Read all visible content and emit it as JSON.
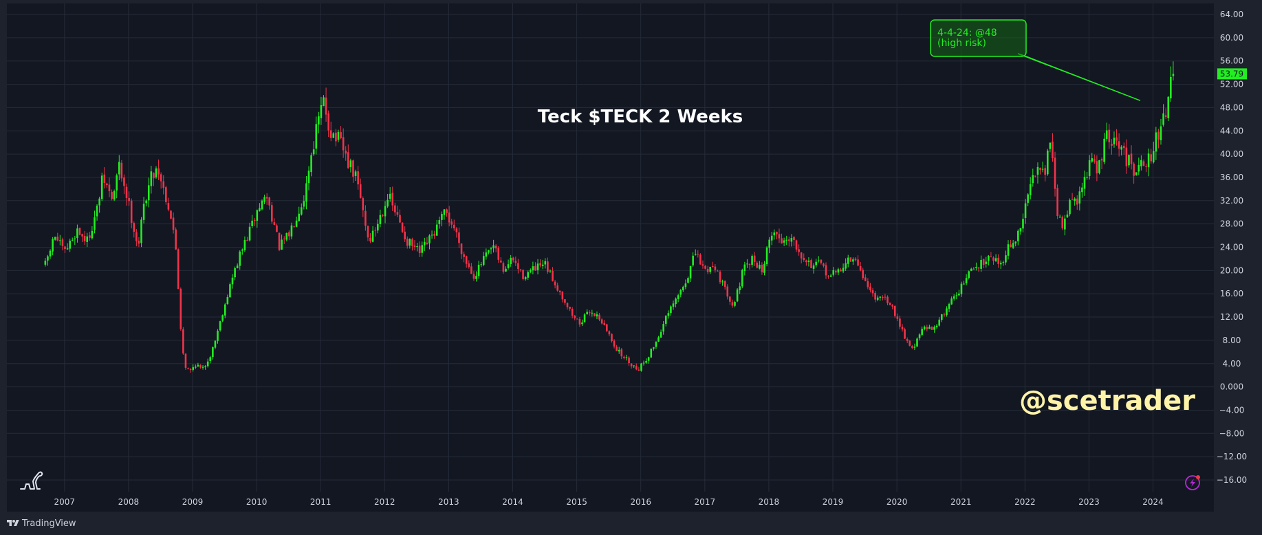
{
  "colors": {
    "background": "#131722",
    "frame": "#1e222d",
    "grid": "#252b38",
    "up": "#22ee22",
    "down": "#f2334a",
    "annotation": "#22ee22",
    "watermark": "#fff3a8",
    "price_badge": "#22ee22"
  },
  "footer": {
    "brand": "TradingView"
  },
  "icons": {
    "bottom_left": "dinosaur-icon",
    "bottom_right": "lightning-icon",
    "footer": "tradingview-logo-icon"
  },
  "chart_data": {
    "type": "candlestick",
    "title": "Teck $TECK 2 Weeks",
    "watermark": "@scetrader",
    "ylim": [
      -18,
      66
    ],
    "y_ticks": [
      64,
      60,
      56,
      52,
      48,
      44,
      40,
      36,
      32,
      28,
      24,
      20,
      16,
      12,
      8,
      4,
      0,
      -4,
      -8,
      -12,
      -16
    ],
    "y_tick_labels": [
      "64.00",
      "60.00",
      "56.00",
      "52.00",
      "48.00",
      "44.00",
      "40.00",
      "36.00",
      "32.00",
      "28.00",
      "24.00",
      "20.00",
      "16.00",
      "12.00",
      "8.00",
      "4.00",
      "0.000",
      "−4.00",
      "−8.00",
      "−12.00",
      "−16.00"
    ],
    "x_range": [
      2006.1,
      2024.95
    ],
    "x_ticks": [
      "2007",
      "2008",
      "2009",
      "2010",
      "2011",
      "2012",
      "2013",
      "2014",
      "2015",
      "2016",
      "2017",
      "2018",
      "2019",
      "2020",
      "2021",
      "2022",
      "2023",
      "2024"
    ],
    "last_price": "53.79",
    "annotation": {
      "line1": "4-4-24: @48",
      "line2": "(high risk)",
      "target_date": 2023.8,
      "target_price": 49.2
    },
    "price_path": [
      [
        2006.7,
        21
      ],
      [
        2006.85,
        26
      ],
      [
        2007.0,
        23
      ],
      [
        2007.2,
        27
      ],
      [
        2007.35,
        25
      ],
      [
        2007.5,
        30
      ],
      [
        2007.6,
        36
      ],
      [
        2007.75,
        32
      ],
      [
        2007.85,
        38
      ],
      [
        2007.95,
        34
      ],
      [
        2008.05,
        29
      ],
      [
        2008.15,
        24
      ],
      [
        2008.25,
        32
      ],
      [
        2008.35,
        36
      ],
      [
        2008.45,
        38
      ],
      [
        2008.55,
        34
      ],
      [
        2008.65,
        30
      ],
      [
        2008.75,
        23
      ],
      [
        2008.8,
        12
      ],
      [
        2008.87,
        4
      ],
      [
        2008.95,
        2.5
      ],
      [
        2009.05,
        4
      ],
      [
        2009.15,
        2.8
      ],
      [
        2009.3,
        6
      ],
      [
        2009.45,
        12
      ],
      [
        2009.6,
        18
      ],
      [
        2009.75,
        23
      ],
      [
        2009.9,
        27
      ],
      [
        2010.0,
        30
      ],
      [
        2010.15,
        33
      ],
      [
        2010.25,
        29
      ],
      [
        2010.35,
        24
      ],
      [
        2010.5,
        26
      ],
      [
        2010.6,
        29
      ],
      [
        2010.75,
        33
      ],
      [
        2010.85,
        40
      ],
      [
        2010.95,
        45
      ],
      [
        2011.05,
        49
      ],
      [
        2011.15,
        44
      ],
      [
        2011.3,
        42
      ],
      [
        2011.45,
        38
      ],
      [
        2011.55,
        36
      ],
      [
        2011.65,
        31
      ],
      [
        2011.75,
        25
      ],
      [
        2011.85,
        27
      ],
      [
        2012.05,
        33
      ],
      [
        2012.2,
        29
      ],
      [
        2012.35,
        25
      ],
      [
        2012.55,
        23
      ],
      [
        2012.75,
        26
      ],
      [
        2012.95,
        30
      ],
      [
        2013.1,
        27
      ],
      [
        2013.25,
        22
      ],
      [
        2013.4,
        19
      ],
      [
        2013.55,
        22
      ],
      [
        2013.7,
        24
      ],
      [
        2013.85,
        20
      ],
      [
        2014.0,
        22
      ],
      [
        2014.15,
        19
      ],
      [
        2014.3,
        20
      ],
      [
        2014.5,
        21
      ],
      [
        2014.65,
        18
      ],
      [
        2014.8,
        15
      ],
      [
        2014.95,
        12
      ],
      [
        2015.05,
        11
      ],
      [
        2015.2,
        13
      ],
      [
        2015.35,
        12
      ],
      [
        2015.5,
        9
      ],
      [
        2015.65,
        6
      ],
      [
        2015.8,
        4.5
      ],
      [
        2015.95,
        3
      ],
      [
        2016.1,
        5
      ],
      [
        2016.25,
        8
      ],
      [
        2016.4,
        12
      ],
      [
        2016.55,
        15
      ],
      [
        2016.7,
        18
      ],
      [
        2016.85,
        23
      ],
      [
        2017.0,
        20
      ],
      [
        2017.15,
        21
      ],
      [
        2017.3,
        17
      ],
      [
        2017.45,
        14
      ],
      [
        2017.6,
        20
      ],
      [
        2017.75,
        22
      ],
      [
        2017.9,
        20
      ],
      [
        2018.05,
        27
      ],
      [
        2018.2,
        25
      ],
      [
        2018.35,
        26
      ],
      [
        2018.5,
        23
      ],
      [
        2018.65,
        21
      ],
      [
        2018.8,
        21
      ],
      [
        2018.95,
        19
      ],
      [
        2019.1,
        20
      ],
      [
        2019.25,
        22
      ],
      [
        2019.4,
        21
      ],
      [
        2019.55,
        17
      ],
      [
        2019.7,
        15
      ],
      [
        2019.85,
        15
      ],
      [
        2020.0,
        12
      ],
      [
        2020.15,
        8
      ],
      [
        2020.25,
        6.5
      ],
      [
        2020.4,
        10
      ],
      [
        2020.55,
        10
      ],
      [
        2020.7,
        12
      ],
      [
        2020.85,
        15
      ],
      [
        2021.0,
        17
      ],
      [
        2021.15,
        20
      ],
      [
        2021.3,
        21
      ],
      [
        2021.45,
        23
      ],
      [
        2021.6,
        21
      ],
      [
        2021.75,
        24
      ],
      [
        2021.9,
        26
      ],
      [
        2022.05,
        33
      ],
      [
        2022.2,
        39
      ],
      [
        2022.3,
        37
      ],
      [
        2022.4,
        42
      ],
      [
        2022.5,
        30
      ],
      [
        2022.6,
        27
      ],
      [
        2022.7,
        33
      ],
      [
        2022.8,
        31
      ],
      [
        2022.9,
        35
      ],
      [
        2023.05,
        39
      ],
      [
        2023.15,
        37
      ],
      [
        2023.25,
        43
      ],
      [
        2023.35,
        42
      ],
      [
        2023.5,
        41
      ],
      [
        2023.6,
        39
      ],
      [
        2023.7,
        37
      ],
      [
        2023.8,
        40
      ],
      [
        2023.9,
        38
      ],
      [
        2024.0,
        41
      ],
      [
        2024.1,
        44
      ],
      [
        2024.2,
        48
      ],
      [
        2024.3,
        53.79
      ]
    ]
  }
}
